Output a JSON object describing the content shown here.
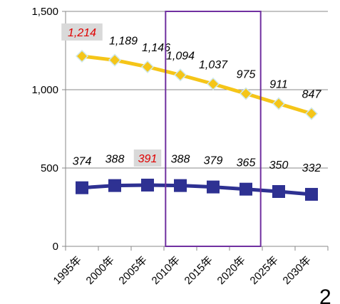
{
  "chart_data": {
    "type": "line",
    "categories": [
      "1995年",
      "2000年",
      "2005年",
      "2010年",
      "2015年",
      "2020年",
      "2025年",
      "2030年"
    ],
    "ylim": [
      0,
      1500
    ],
    "yticks": [
      0,
      500,
      1000,
      1500
    ],
    "ytick_labels": [
      "0",
      "500",
      "1,000",
      "1,500"
    ],
    "grid": true,
    "series": [
      {
        "values": [
          1214,
          1189,
          1146,
          1094,
          1037,
          975,
          911,
          847
        ],
        "labels": [
          "1,214",
          "1,189",
          "1,146",
          "1,094",
          "1,037",
          "975",
          "911",
          "847"
        ],
        "color": "#f5c518",
        "marker": "diamond",
        "highlight_index": 0
      },
      {
        "values": [
          374,
          388,
          391,
          388,
          379,
          365,
          350,
          332
        ],
        "labels": [
          "374",
          "388",
          "391",
          "388",
          "379",
          "365",
          "350",
          "332"
        ],
        "color": "#2e3192",
        "marker": "square",
        "highlight_index": 2
      }
    ],
    "highlight_range": [
      "2010年",
      "2020年"
    ],
    "highlight_color": "#7030a0"
  },
  "corner_text": "2"
}
